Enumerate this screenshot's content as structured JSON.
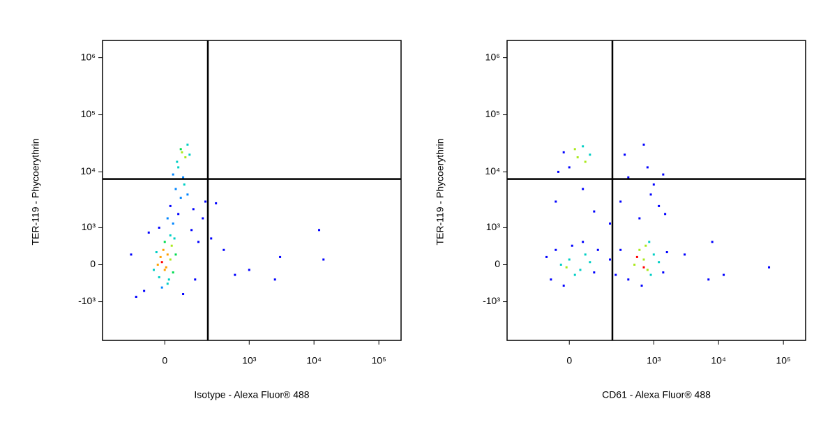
{
  "chart_data": [
    {
      "type": "scatter",
      "scale": "biexponential",
      "xlabel": "Isotype - Alexa Fluor® 488",
      "ylabel": "TER-119 - Phycoerythrin",
      "xlim": [
        -450,
        220000
      ],
      "ylim": [
        -5000,
        2000000
      ],
      "xticks": [
        0,
        {
          "value": 1000,
          "label": "10³"
        },
        {
          "value": 10000,
          "label": "10⁴"
        },
        {
          "value": 100000,
          "label": "10⁵"
        }
      ],
      "yticks": [
        {
          "value": -1000,
          "label": "-10³"
        },
        0,
        {
          "value": 1000,
          "label": "10³"
        },
        {
          "value": 10000,
          "label": "10⁴"
        },
        {
          "value": 100000,
          "label": "10⁵"
        },
        {
          "value": 1000000,
          "label": "10⁶"
        }
      ],
      "gate": {
        "x": 220,
        "y": 7500
      },
      "x": [
        -10,
        0,
        10,
        -20,
        20,
        -5,
        5,
        15,
        -15,
        25,
        -25,
        30,
        0,
        -30,
        10,
        40,
        -40,
        35,
        -10,
        20,
        30,
        50,
        20,
        60,
        40,
        70,
        50,
        80,
        60,
        90,
        30,
        100,
        45,
        75,
        10,
        120,
        90,
        -20,
        110,
        65,
        -80,
        -120,
        -150,
        130,
        150,
        180,
        250,
        400,
        600,
        1000,
        3000,
        12000,
        14000,
        2500,
        300,
        200,
        -60,
        70
      ],
      "y": [
        50,
        -100,
        200,
        -250,
        100,
        300,
        -50,
        -300,
        150,
        400,
        0,
        -150,
        500,
        250,
        -400,
        200,
        -100,
        600,
        -500,
        700,
        1200,
        1800,
        2500,
        3500,
        5000,
        8000,
        12000,
        18000,
        25000,
        30000,
        9000,
        20000,
        15000,
        6000,
        1500,
        2200,
        4000,
        1000,
        900,
        22000,
        -600,
        -800,
        200,
        -300,
        500,
        1500,
        600,
        300,
        -200,
        -100,
        150,
        900,
        100,
        -300,
        2800,
        3000,
        800,
        -700
      ]
    },
    {
      "type": "scatter",
      "scale": "biexponential",
      "xlabel": "CD61 - Alexa Fluor® 488",
      "ylabel": "TER-119 - Phycoerythrin",
      "xlim": [
        -450,
        220000
      ],
      "ylim": [
        -5000,
        2000000
      ],
      "xticks": [
        0,
        {
          "value": 1000,
          "label": "10³"
        },
        {
          "value": 10000,
          "label": "10⁴"
        },
        {
          "value": 100000,
          "label": "10⁵"
        }
      ],
      "yticks": [
        {
          "value": -1000,
          "label": "-10³"
        },
        0,
        {
          "value": 1000,
          "label": "10³"
        },
        {
          "value": 10000,
          "label": "10⁴"
        },
        {
          "value": 100000,
          "label": "10⁵"
        },
        {
          "value": 1000000,
          "label": "10⁶"
        }
      ],
      "gate": {
        "x": 220,
        "y": 7500
      },
      "x": [
        -30,
        0,
        20,
        -50,
        40,
        60,
        -70,
        10,
        80,
        -20,
        100,
        -90,
        50,
        120,
        -10,
        500,
        700,
        900,
        600,
        800,
        1000,
        400,
        750,
        1200,
        650,
        1400,
        550,
        850,
        300,
        700,
        200,
        250,
        1600,
        0,
        30,
        -20,
        60,
        20,
        -40,
        50,
        80,
        100,
        300,
        600,
        900,
        1200,
        50,
        400,
        800,
        700,
        1000,
        200,
        1500,
        -50,
        350,
        1400,
        8000,
        60000,
        12000,
        7000,
        3000
      ],
      "y": [
        0,
        100,
        -200,
        300,
        -100,
        200,
        -300,
        400,
        50,
        -450,
        -150,
        150,
        500,
        300,
        -50,
        0,
        100,
        -200,
        300,
        -100,
        200,
        -300,
        400,
        50,
        -450,
        -150,
        150,
        500,
        300,
        -50,
        100,
        -200,
        250,
        12000,
        18000,
        22000,
        15000,
        25000,
        10000,
        28000,
        20000,
        2000,
        3000,
        1500,
        4000,
        2500,
        5000,
        8000,
        12000,
        30000,
        6000,
        1200,
        1800,
        3000,
        20000,
        9000,
        500,
        -50,
        -200,
        -300,
        200
      ]
    }
  ]
}
